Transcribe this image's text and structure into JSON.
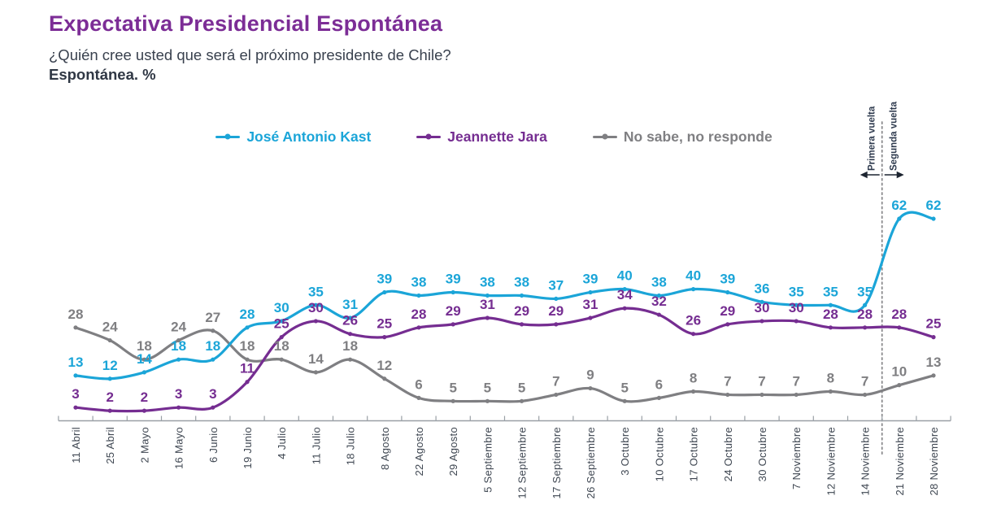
{
  "header": {
    "title": "Expectativa Presidencial Espontánea",
    "question": "¿Quién cree usted que será el próximo presidente de Chile?",
    "subtitle": "Espontánea. %"
  },
  "colors": {
    "title": "#7c2d96",
    "kast": "#1ba5d8",
    "jara": "#752d91",
    "nsnr": "#7f7f82",
    "axis": "#9aa0a6",
    "x_labels": "#3e4651",
    "annotation_text": "#2e3a4e",
    "divider": "#8a8a8d"
  },
  "chart_data": {
    "type": "line",
    "title": "Expectativa Presidencial Espontánea",
    "xlabel": "",
    "ylabel": "%",
    "ylim": [
      0,
      70
    ],
    "grid": false,
    "legend_position": "top",
    "categories": [
      "11 Abril",
      "25 Abril",
      "2 Mayo",
      "16 Mayo",
      "6 Junio",
      "19 Junio",
      "4 Julio",
      "11 Julio",
      "18 Julio",
      "8 Agosto",
      "22 Agosto",
      "29 Agosto",
      "5 Septiembre",
      "12 Septiembre",
      "17 Septiembre",
      "26 Septiembre",
      "3 Octubre",
      "10 Octubre",
      "17 Octubre",
      "24 Octubre",
      "30 Octubre",
      "7 Noviembre",
      "12 Noviembre",
      "14 Noviembre",
      "21 Noviembre",
      "28 Noviembre"
    ],
    "series": [
      {
        "name": "José Antonio Kast",
        "slug": "jose-antonio-kast",
        "color": "#1ba5d8",
        "values": [
          13,
          12,
          14,
          18,
          18,
          28,
          30,
          35,
          31,
          39,
          38,
          39,
          38,
          38,
          37,
          39,
          40,
          38,
          40,
          39,
          36,
          35,
          35,
          35,
          62,
          62
        ]
      },
      {
        "name": "Jeannette Jara",
        "slug": "jeannette-jara",
        "color": "#752d91",
        "values": [
          3,
          2,
          2,
          3,
          3,
          11,
          25,
          30,
          26,
          25,
          28,
          29,
          31,
          29,
          29,
          31,
          34,
          32,
          26,
          29,
          30,
          30,
          28,
          28,
          28,
          25
        ]
      },
      {
        "name": "No sabe, no responde",
        "slug": "no-sabe-no-responde",
        "color": "#7f7f82",
        "values": [
          28,
          24,
          18,
          24,
          27,
          18,
          18,
          14,
          18,
          12,
          6,
          5,
          5,
          5,
          7,
          9,
          5,
          6,
          8,
          7,
          7,
          7,
          8,
          7,
          10,
          13
        ]
      }
    ],
    "annotations": {
      "first_round": "Primera vuelta",
      "second_round": "Segunda vuelta"
    }
  }
}
